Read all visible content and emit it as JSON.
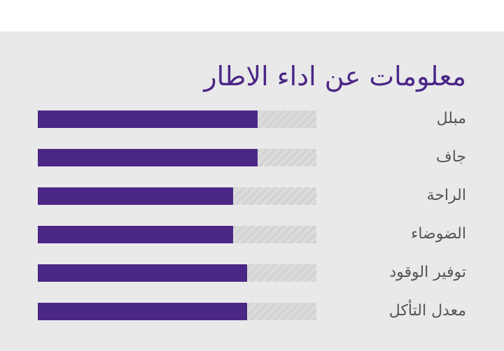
{
  "panel": {
    "title": "معلومات عن اداء الاطار"
  },
  "chart_data": {
    "type": "bar",
    "orientation": "horizontal",
    "title": "معلومات عن اداء الاطار",
    "categories": [
      "مبلل",
      "جاف",
      "الراحة",
      "الضوضاء",
      "توفير الوقود",
      "معدل التأكل"
    ],
    "values": [
      0.79,
      0.79,
      0.7,
      0.7,
      0.75,
      0.75
    ],
    "xlim": [
      0,
      1
    ],
    "colors": {
      "fill": "#4b2785",
      "track": "#d4d4d5",
      "title": "#4b2785",
      "label": "#555555",
      "background": "#e9e9ea"
    }
  }
}
